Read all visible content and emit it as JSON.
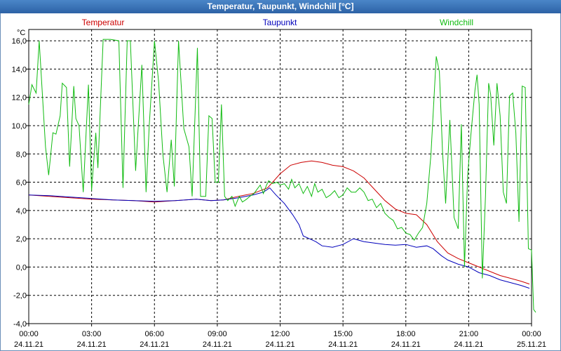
{
  "window": {
    "title": "Temperatur, Taupunkt, Windchill [°C]"
  },
  "chart_data": {
    "type": "line",
    "title": "Temperatur, Taupunkt, Windchill [°C]",
    "ylabel": "°C",
    "ylim": [
      -4,
      16.8
    ],
    "xlim": [
      0,
      24
    ],
    "grid": true,
    "y_ticks": [
      -4,
      -2,
      0,
      2,
      4,
      6,
      8,
      10,
      12,
      14,
      16
    ],
    "y_tick_labels": [
      "-4,0",
      "-2,0",
      "0,0",
      "2,0",
      "4,0",
      "6,0",
      "8,0",
      "10,0",
      "12,0",
      "14,0",
      "16,0"
    ],
    "x_ticks": [
      {
        "h": 0,
        "time": "00:00",
        "date": "24.11.21"
      },
      {
        "h": 3,
        "time": "03:00",
        "date": "24.11.21"
      },
      {
        "h": 6,
        "time": "06:00",
        "date": "24.11.21"
      },
      {
        "h": 9,
        "time": "09:00",
        "date": "24.11.21"
      },
      {
        "h": 12,
        "time": "12:00",
        "date": "24.11.21"
      },
      {
        "h": 15,
        "time": "15:00",
        "date": "24.11.21"
      },
      {
        "h": 18,
        "time": "18:00",
        "date": "24.11.21"
      },
      {
        "h": 21,
        "time": "21:00",
        "date": "24.11.21"
      },
      {
        "h": 24,
        "time": "00:00",
        "date": "25.11.21"
      }
    ],
    "series": [
      {
        "name": "Temperatur",
        "color": "#cc0000",
        "legend_pos": "top-left",
        "points": [
          [
            0,
            5.1
          ],
          [
            1,
            5.0
          ],
          [
            2,
            4.9
          ],
          [
            3,
            4.8
          ],
          [
            4,
            4.75
          ],
          [
            5,
            4.7
          ],
          [
            6,
            4.6
          ],
          [
            7,
            4.7
          ],
          [
            8,
            4.8
          ],
          [
            8.7,
            4.7
          ],
          [
            9.3,
            4.75
          ],
          [
            10,
            5.0
          ],
          [
            10.7,
            5.2
          ],
          [
            11.4,
            5.6
          ],
          [
            12,
            6.6
          ],
          [
            12.5,
            7.2
          ],
          [
            13,
            7.4
          ],
          [
            13.5,
            7.5
          ],
          [
            14,
            7.4
          ],
          [
            14.5,
            7.2
          ],
          [
            15,
            7.1
          ],
          [
            15.5,
            6.8
          ],
          [
            16,
            6.3
          ],
          [
            16.5,
            5.5
          ],
          [
            17,
            4.7
          ],
          [
            17.5,
            4.1
          ],
          [
            18,
            3.8
          ],
          [
            18.5,
            3.7
          ],
          [
            19,
            3.0
          ],
          [
            19.5,
            1.8
          ],
          [
            20,
            1.0
          ],
          [
            20.5,
            0.6
          ],
          [
            21,
            0.3
          ],
          [
            21.5,
            0.0
          ],
          [
            22,
            -0.3
          ],
          [
            22.5,
            -0.6
          ],
          [
            23,
            -0.8
          ],
          [
            23.5,
            -1.0
          ],
          [
            23.9,
            -1.2
          ]
        ]
      },
      {
        "name": "Taupunkt",
        "color": "#0000bb",
        "legend_pos": "top-center",
        "points": [
          [
            0,
            5.1
          ],
          [
            1,
            5.05
          ],
          [
            2,
            4.95
          ],
          [
            3,
            4.85
          ],
          [
            4,
            4.75
          ],
          [
            5,
            4.7
          ],
          [
            6,
            4.65
          ],
          [
            7,
            4.7
          ],
          [
            8,
            4.8
          ],
          [
            8.7,
            4.7
          ],
          [
            9.3,
            4.75
          ],
          [
            10,
            4.9
          ],
          [
            10.7,
            5.1
          ],
          [
            11.2,
            5.3
          ],
          [
            11.5,
            5.6
          ],
          [
            11.8,
            5.1
          ],
          [
            12.2,
            4.5
          ],
          [
            12.6,
            3.7
          ],
          [
            12.9,
            3.0
          ],
          [
            13.1,
            2.2
          ],
          [
            13.4,
            2.0
          ],
          [
            13.7,
            1.8
          ],
          [
            14,
            1.5
          ],
          [
            14.5,
            1.4
          ],
          [
            15,
            1.6
          ],
          [
            15.5,
            2.0
          ],
          [
            16,
            1.8
          ],
          [
            16.5,
            1.7
          ],
          [
            17,
            1.6
          ],
          [
            17.5,
            1.55
          ],
          [
            18,
            1.6
          ],
          [
            18.5,
            1.4
          ],
          [
            19,
            1.5
          ],
          [
            19.3,
            1.3
          ],
          [
            19.7,
            0.8
          ],
          [
            20,
            0.5
          ],
          [
            20.5,
            0.2
          ],
          [
            21,
            0.0
          ],
          [
            21.5,
            -0.4
          ],
          [
            22,
            -0.6
          ],
          [
            22.5,
            -0.9
          ],
          [
            23,
            -1.1
          ],
          [
            23.5,
            -1.3
          ],
          [
            23.9,
            -1.5
          ]
        ]
      },
      {
        "name": "Windchill",
        "color": "#11bb11",
        "legend_pos": "top-right",
        "points": [
          [
            0,
            11.5
          ],
          [
            0.15,
            12.9
          ],
          [
            0.35,
            12.3
          ],
          [
            0.5,
            16.0
          ],
          [
            0.8,
            8.5
          ],
          [
            0.95,
            6.5
          ],
          [
            1.15,
            9.5
          ],
          [
            1.3,
            9.4
          ],
          [
            1.5,
            10.7
          ],
          [
            1.6,
            13.0
          ],
          [
            1.8,
            12.7
          ],
          [
            1.95,
            7.1
          ],
          [
            2.15,
            12.8
          ],
          [
            2.25,
            10.5
          ],
          [
            2.4,
            10.0
          ],
          [
            2.6,
            5.3
          ],
          [
            2.85,
            12.9
          ],
          [
            3.0,
            5.4
          ],
          [
            3.2,
            9.5
          ],
          [
            3.3,
            7.0
          ],
          [
            3.55,
            16.1
          ],
          [
            3.9,
            16.1
          ],
          [
            4.3,
            16.0
          ],
          [
            4.5,
            5.6
          ],
          [
            4.7,
            16.0
          ],
          [
            4.85,
            16.0
          ],
          [
            5.1,
            6.8
          ],
          [
            5.4,
            14.3
          ],
          [
            5.6,
            5.3
          ],
          [
            5.75,
            10.0
          ],
          [
            6.0,
            16.0
          ],
          [
            6.2,
            13.1
          ],
          [
            6.4,
            8.0
          ],
          [
            6.6,
            5.3
          ],
          [
            6.8,
            9.0
          ],
          [
            6.95,
            5.7
          ],
          [
            7.15,
            16.0
          ],
          [
            7.4,
            9.8
          ],
          [
            7.65,
            8.5
          ],
          [
            7.8,
            5.0
          ],
          [
            8.05,
            15.5
          ],
          [
            8.2,
            5.0
          ],
          [
            8.45,
            5.0
          ],
          [
            8.6,
            10.7
          ],
          [
            8.75,
            10.5
          ],
          [
            8.9,
            6.0
          ],
          [
            9.05,
            6.0
          ],
          [
            9.2,
            11.5
          ],
          [
            9.35,
            5.0
          ],
          [
            9.5,
            4.7
          ],
          [
            9.7,
            5.0
          ],
          [
            9.85,
            4.3
          ],
          [
            10.05,
            5.0
          ],
          [
            10.2,
            4.6
          ],
          [
            10.4,
            4.8
          ],
          [
            10.55,
            5.0
          ],
          [
            10.75,
            5.2
          ],
          [
            10.9,
            5.5
          ],
          [
            11.05,
            5.8
          ],
          [
            11.2,
            5.2
          ],
          [
            11.35,
            5.8
          ],
          [
            11.45,
            6.1
          ],
          [
            11.65,
            5.9
          ],
          [
            11.85,
            6.0
          ],
          [
            12.0,
            5.8
          ],
          [
            12.2,
            5.9
          ],
          [
            12.4,
            5.5
          ],
          [
            12.55,
            6.2
          ],
          [
            12.7,
            5.6
          ],
          [
            12.9,
            5.9
          ],
          [
            13.1,
            5.2
          ],
          [
            13.3,
            5.7
          ],
          [
            13.5,
            5.0
          ],
          [
            13.65,
            5.9
          ],
          [
            13.8,
            5.3
          ],
          [
            14.0,
            5.5
          ],
          [
            14.2,
            4.9
          ],
          [
            14.4,
            5.1
          ],
          [
            14.6,
            5.4
          ],
          [
            14.8,
            4.9
          ],
          [
            15.0,
            5.1
          ],
          [
            15.2,
            5.6
          ],
          [
            15.4,
            5.3
          ],
          [
            15.6,
            5.3
          ],
          [
            15.8,
            5.6
          ],
          [
            16.0,
            5.3
          ],
          [
            16.2,
            4.7
          ],
          [
            16.4,
            4.8
          ],
          [
            16.6,
            4.2
          ],
          [
            16.8,
            4.5
          ],
          [
            17.0,
            3.8
          ],
          [
            17.2,
            3.5
          ],
          [
            17.4,
            3.3
          ],
          [
            17.6,
            2.7
          ],
          [
            17.8,
            2.8
          ],
          [
            18.0,
            2.4
          ],
          [
            18.2,
            2.3
          ],
          [
            18.4,
            1.9
          ],
          [
            18.6,
            2.4
          ],
          [
            18.8,
            2.8
          ],
          [
            19.0,
            4.5
          ],
          [
            19.2,
            8.0
          ],
          [
            19.45,
            14.9
          ],
          [
            19.6,
            13.8
          ],
          [
            19.75,
            8.2
          ],
          [
            19.9,
            4.5
          ],
          [
            20.1,
            10.4
          ],
          [
            20.3,
            3.5
          ],
          [
            20.5,
            2.7
          ],
          [
            20.65,
            10.1
          ],
          [
            20.8,
            0.0
          ],
          [
            20.95,
            6.5
          ],
          [
            21.1,
            9.3
          ],
          [
            21.3,
            12.5
          ],
          [
            21.4,
            13.6
          ],
          [
            21.5,
            11.5
          ],
          [
            21.65,
            -0.8
          ],
          [
            21.8,
            5.0
          ],
          [
            21.95,
            13.0
          ],
          [
            22.05,
            12.2
          ],
          [
            22.2,
            8.6
          ],
          [
            22.35,
            13.0
          ],
          [
            22.5,
            10.7
          ],
          [
            22.65,
            5.3
          ],
          [
            22.8,
            4.5
          ],
          [
            22.95,
            12.1
          ],
          [
            23.1,
            12.3
          ],
          [
            23.25,
            9.5
          ],
          [
            23.4,
            3.2
          ],
          [
            23.55,
            12.8
          ],
          [
            23.7,
            12.7
          ],
          [
            23.85,
            1.3
          ],
          [
            24.0,
            1.2
          ],
          [
            24.1,
            -3.0
          ],
          [
            24.2,
            -3.2
          ]
        ]
      }
    ]
  }
}
